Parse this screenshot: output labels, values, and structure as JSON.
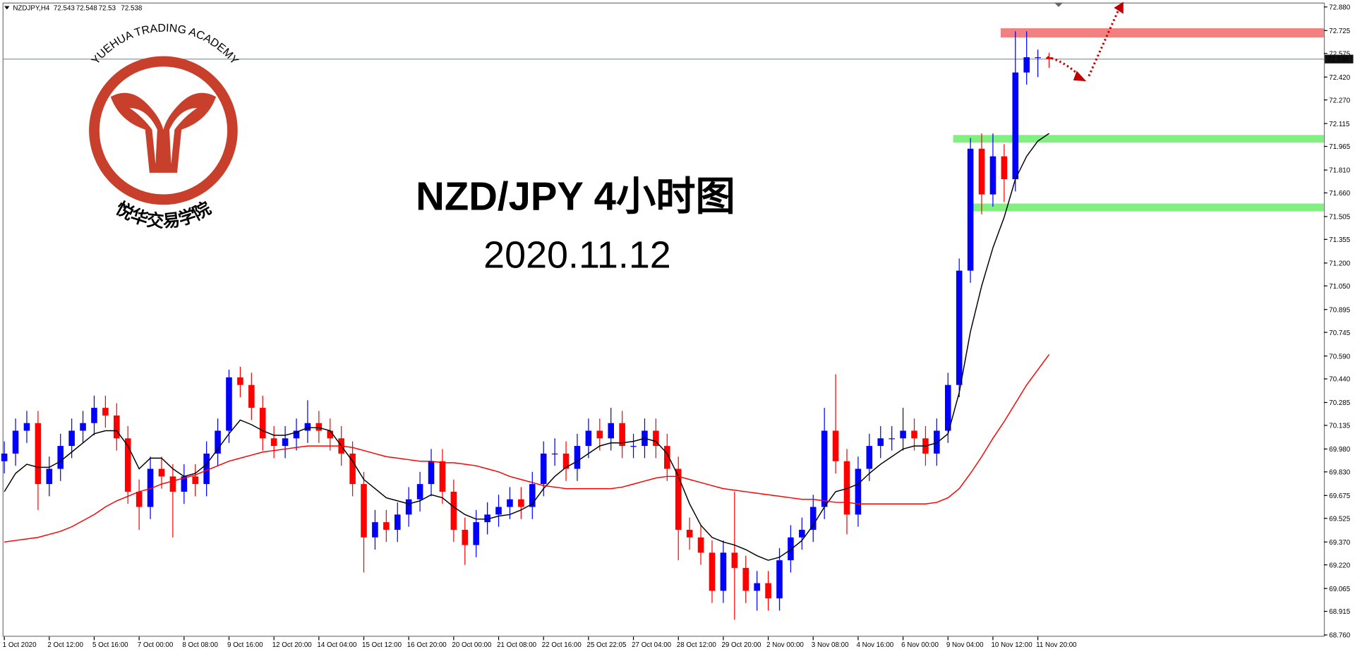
{
  "chart_data": {
    "type": "candlestick",
    "symbol": "NZDJPY,H4",
    "ohlc": [
      72.543,
      72.548,
      72.53,
      72.538
    ],
    "title": "NZD/JPY 4小时图",
    "subtitle": "2020.11.12",
    "logo_text": "YUEHUA TRADING ACADEMY",
    "logo_text_cn": "悦华交易学院",
    "title_color": "#a21ff0",
    "ylim": [
      68.76,
      72.88
    ],
    "yticks": [
      {
        "value": 72.88,
        "label": "72.880"
      },
      72.725,
      72.575,
      {
        "value": 72.42,
        "label": "72.420"
      },
      {
        "value": 72.27,
        "label": "72.270"
      },
      72.115,
      71.965,
      {
        "value": 71.81,
        "label": "71.810"
      },
      {
        "value": 71.66,
        "label": "71.660"
      },
      71.505,
      71.355,
      {
        "value": 71.2,
        "label": "71.200"
      },
      {
        "value": 71.05,
        "label": "71.050"
      },
      70.895,
      70.745,
      {
        "value": 70.59,
        "label": "70.590"
      },
      {
        "value": 70.44,
        "label": "70.440"
      },
      70.285,
      70.135,
      {
        "value": 69.98,
        "label": "69.980"
      },
      {
        "value": 69.83,
        "label": "69.830"
      },
      69.675,
      69.525,
      {
        "value": 69.37,
        "label": "69.370"
      },
      {
        "value": 69.22,
        "label": "69.220"
      },
      69.065,
      68.915,
      {
        "value": 68.76,
        "label": "68.760"
      }
    ],
    "xticks": [
      {
        "value": 0,
        "label": "1 Oct 2020"
      },
      {
        "value": 4,
        "label": "2 Oct 12:00"
      },
      {
        "value": 8,
        "label": "5 Oct 16:00"
      },
      {
        "value": 12,
        "label": "7 Oct 00:00"
      },
      {
        "value": 16,
        "label": "8 Oct 08:00"
      },
      {
        "value": 20,
        "label": "9 Oct 16:00"
      },
      {
        "value": 24,
        "label": "12 Oct 20:00"
      },
      {
        "value": 28,
        "label": "14 Oct 04:00"
      },
      {
        "value": 32,
        "label": "15 Oct 12:00"
      },
      {
        "value": 36,
        "label": "16 Oct 20:00"
      },
      {
        "value": 40,
        "label": "20 Oct 00:00"
      },
      {
        "value": 44,
        "label": "21 Oct 08:00"
      },
      {
        "value": 48,
        "label": "22 Oct 16:00"
      },
      {
        "value": 52,
        "label": "25 Oct 22:05"
      },
      {
        "value": 56,
        "label": "27 Oct 04:00"
      },
      {
        "value": 60,
        "label": "28 Oct 12:00"
      },
      {
        "value": 64,
        "label": "29 Oct 20:00"
      },
      {
        "value": 68,
        "label": "2 Nov 00:00"
      },
      {
        "value": 72,
        "label": "3 Nov 08:00"
      },
      {
        "value": 76,
        "label": "4 Nov 16:00"
      },
      {
        "value": 80,
        "label": "6 Nov 00:00"
      },
      {
        "value": 84,
        "label": "9 Nov 04:00"
      },
      {
        "value": 88,
        "label": "10 Nov 12:00"
      },
      {
        "value": 92,
        "label": "11 Nov 20:00"
      }
    ],
    "candles": {
      "up_color": "#0000ff",
      "down_color": "#ff0000",
      "open": [
        69.9,
        69.95,
        70.1,
        70.15,
        69.75,
        69.85,
        70.0,
        70.1,
        70.15,
        70.25,
        70.2,
        70.05,
        69.7,
        69.6,
        69.85,
        69.8,
        69.7,
        69.8,
        69.75,
        69.95,
        70.1,
        70.45,
        70.4,
        70.25,
        70.05,
        70.0,
        70.05,
        70.1,
        70.15,
        70.1,
        70.05,
        69.95,
        69.75,
        69.4,
        69.5,
        69.45,
        69.55,
        69.65,
        69.75,
        69.9,
        69.7,
        69.45,
        69.35,
        69.5,
        69.55,
        69.6,
        69.65,
        69.6,
        69.75,
        69.95,
        69.95,
        69.85,
        70.0,
        70.1,
        70.05,
        70.15,
        70.0,
        70.0,
        70.1,
        70.0,
        69.85,
        69.45,
        69.4,
        69.3,
        69.05,
        69.3,
        69.2,
        69.05,
        69.1,
        69.0,
        69.25,
        69.4,
        69.45,
        69.6,
        70.1,
        69.9,
        69.55,
        69.85,
        70.0,
        70.05,
        70.05,
        70.1,
        70.05,
        69.95,
        70.1,
        70.4,
        71.15,
        71.95,
        71.65,
        71.9,
        71.75,
        72.45,
        72.55,
        72.55
      ],
      "high": [
        70.03,
        70.18,
        70.23,
        70.23,
        69.93,
        70.08,
        70.18,
        70.23,
        70.33,
        70.33,
        70.28,
        70.13,
        69.78,
        69.93,
        69.93,
        69.88,
        69.88,
        69.88,
        70.03,
        70.18,
        70.5,
        70.52,
        70.48,
        70.33,
        70.13,
        70.13,
        70.18,
        70.3,
        70.23,
        70.18,
        70.13,
        70.03,
        69.83,
        69.58,
        69.58,
        69.63,
        69.73,
        69.83,
        69.98,
        69.98,
        69.78,
        69.53,
        69.58,
        69.63,
        69.68,
        69.73,
        69.73,
        69.83,
        70.03,
        70.05,
        70.03,
        70.08,
        70.18,
        70.18,
        70.25,
        70.23,
        70.08,
        70.18,
        70.18,
        70.08,
        69.93,
        69.53,
        69.48,
        69.38,
        69.38,
        69.7,
        69.28,
        69.18,
        69.18,
        69.33,
        69.48,
        69.53,
        69.68,
        70.25,
        70.47,
        69.98,
        69.93,
        70.08,
        70.13,
        70.13,
        70.25,
        70.18,
        70.13,
        70.18,
        70.48,
        71.23,
        72.02,
        72.05,
        72.05,
        71.98,
        72.72,
        72.72,
        72.6,
        72.58
      ],
      "low": [
        69.82,
        69.87,
        70.02,
        69.58,
        69.67,
        69.77,
        69.92,
        70.02,
        70.07,
        70.12,
        69.97,
        69.62,
        69.45,
        69.52,
        69.72,
        69.4,
        69.62,
        69.67,
        69.67,
        69.87,
        70.02,
        70.32,
        70.17,
        69.97,
        69.92,
        69.92,
        69.97,
        70.02,
        70.02,
        69.97,
        69.87,
        69.67,
        69.17,
        69.32,
        69.37,
        69.37,
        69.47,
        69.57,
        69.67,
        69.62,
        69.37,
        69.22,
        69.27,
        69.42,
        69.47,
        69.52,
        69.52,
        69.52,
        69.67,
        69.87,
        69.77,
        69.77,
        69.92,
        69.97,
        69.97,
        69.92,
        69.92,
        69.92,
        69.92,
        69.77,
        69.25,
        69.32,
        69.22,
        68.97,
        68.97,
        68.86,
        68.97,
        68.92,
        68.92,
        68.92,
        69.17,
        69.32,
        69.37,
        69.52,
        69.82,
        69.42,
        69.47,
        69.77,
        69.92,
        69.97,
        69.97,
        69.97,
        69.87,
        69.87,
        70.02,
        70.32,
        71.07,
        71.52,
        71.57,
        71.6,
        71.67,
        72.37,
        72.42,
        72.48
      ],
      "close": [
        69.95,
        70.1,
        70.15,
        69.75,
        69.85,
        70.0,
        70.1,
        70.15,
        70.25,
        70.2,
        70.05,
        69.7,
        69.6,
        69.85,
        69.8,
        69.7,
        69.8,
        69.75,
        69.95,
        70.1,
        70.45,
        70.4,
        70.25,
        70.05,
        70.0,
        70.05,
        70.1,
        70.15,
        70.1,
        70.05,
        69.95,
        69.75,
        69.4,
        69.5,
        69.45,
        69.55,
        69.65,
        69.75,
        69.9,
        69.7,
        69.45,
        69.35,
        69.5,
        69.55,
        69.6,
        69.65,
        69.6,
        69.75,
        69.95,
        69.95,
        69.85,
        70.0,
        70.1,
        70.05,
        70.15,
        70.0,
        70.0,
        70.1,
        70.0,
        69.85,
        69.45,
        69.4,
        69.3,
        69.05,
        69.3,
        69.2,
        69.05,
        69.1,
        69.0,
        69.25,
        69.4,
        69.45,
        69.6,
        70.1,
        69.9,
        69.55,
        69.85,
        70.0,
        70.05,
        70.05,
        70.1,
        70.05,
        69.95,
        70.1,
        70.4,
        71.15,
        71.95,
        71.65,
        71.9,
        71.75,
        72.45,
        72.55,
        72.55,
        72.538
      ]
    },
    "moving_averages": [
      {
        "color": "#000000",
        "values": [
          69.7,
          69.82,
          69.88,
          69.86,
          69.86,
          69.9,
          69.96,
          70.02,
          70.08,
          70.1,
          70.1,
          70.0,
          69.85,
          69.92,
          69.92,
          69.85,
          69.8,
          69.82,
          69.88,
          69.98,
          70.08,
          70.17,
          70.14,
          70.1,
          70.07,
          70.07,
          70.09,
          70.12,
          70.12,
          70.1,
          70.0,
          69.9,
          69.78,
          69.72,
          69.66,
          69.64,
          69.62,
          69.64,
          69.68,
          69.66,
          69.6,
          69.55,
          69.52,
          69.52,
          69.54,
          69.55,
          69.58,
          69.62,
          69.72,
          69.8,
          69.86,
          69.9,
          69.95,
          70.0,
          70.02,
          70.02,
          70.03,
          70.05,
          70.03,
          69.95,
          69.8,
          69.62,
          69.48,
          69.4,
          69.37,
          69.35,
          69.32,
          69.28,
          69.25,
          69.27,
          69.32,
          69.38,
          69.48,
          69.6,
          69.7,
          69.72,
          69.75,
          69.82,
          69.88,
          69.93,
          69.98,
          70.0,
          70.0,
          70.02,
          70.08,
          70.35,
          70.75,
          71.05,
          71.3,
          71.5,
          71.75,
          71.9,
          72.0,
          72.05
        ]
      },
      {
        "color": "#ff0000",
        "values": [
          69.37,
          69.38,
          69.39,
          69.4,
          69.42,
          69.44,
          69.47,
          69.51,
          69.55,
          69.6,
          69.64,
          69.67,
          69.7,
          69.72,
          69.75,
          69.77,
          69.79,
          69.81,
          69.84,
          69.87,
          69.9,
          69.92,
          69.94,
          69.96,
          69.97,
          69.98,
          69.99,
          70.0,
          70.0,
          70.0,
          70.0,
          69.99,
          69.97,
          69.95,
          69.93,
          69.92,
          69.91,
          69.9,
          69.9,
          69.89,
          69.89,
          69.88,
          69.87,
          69.85,
          69.83,
          69.8,
          69.78,
          69.76,
          69.74,
          69.73,
          69.72,
          69.72,
          69.72,
          69.72,
          69.72,
          69.73,
          69.75,
          69.77,
          69.79,
          69.8,
          69.8,
          69.78,
          69.76,
          69.74,
          69.72,
          69.71,
          69.7,
          69.69,
          69.68,
          69.67,
          69.66,
          69.65,
          69.65,
          69.64,
          69.63,
          69.63,
          69.62,
          69.62,
          69.62,
          69.62,
          69.62,
          69.62,
          69.62,
          69.63,
          69.66,
          69.72,
          69.82,
          69.93,
          70.05,
          70.16,
          70.28,
          70.4,
          70.5,
          70.6
        ]
      }
    ],
    "zones": [
      {
        "from": 72.68,
        "to": 72.74,
        "color": "#f28080"
      },
      {
        "from": 71.99,
        "to": 72.04,
        "color": "#80f080"
      },
      {
        "from": 71.54,
        "to": 71.59,
        "color": "#80f080"
      }
    ],
    "current_price": 72.538
  }
}
